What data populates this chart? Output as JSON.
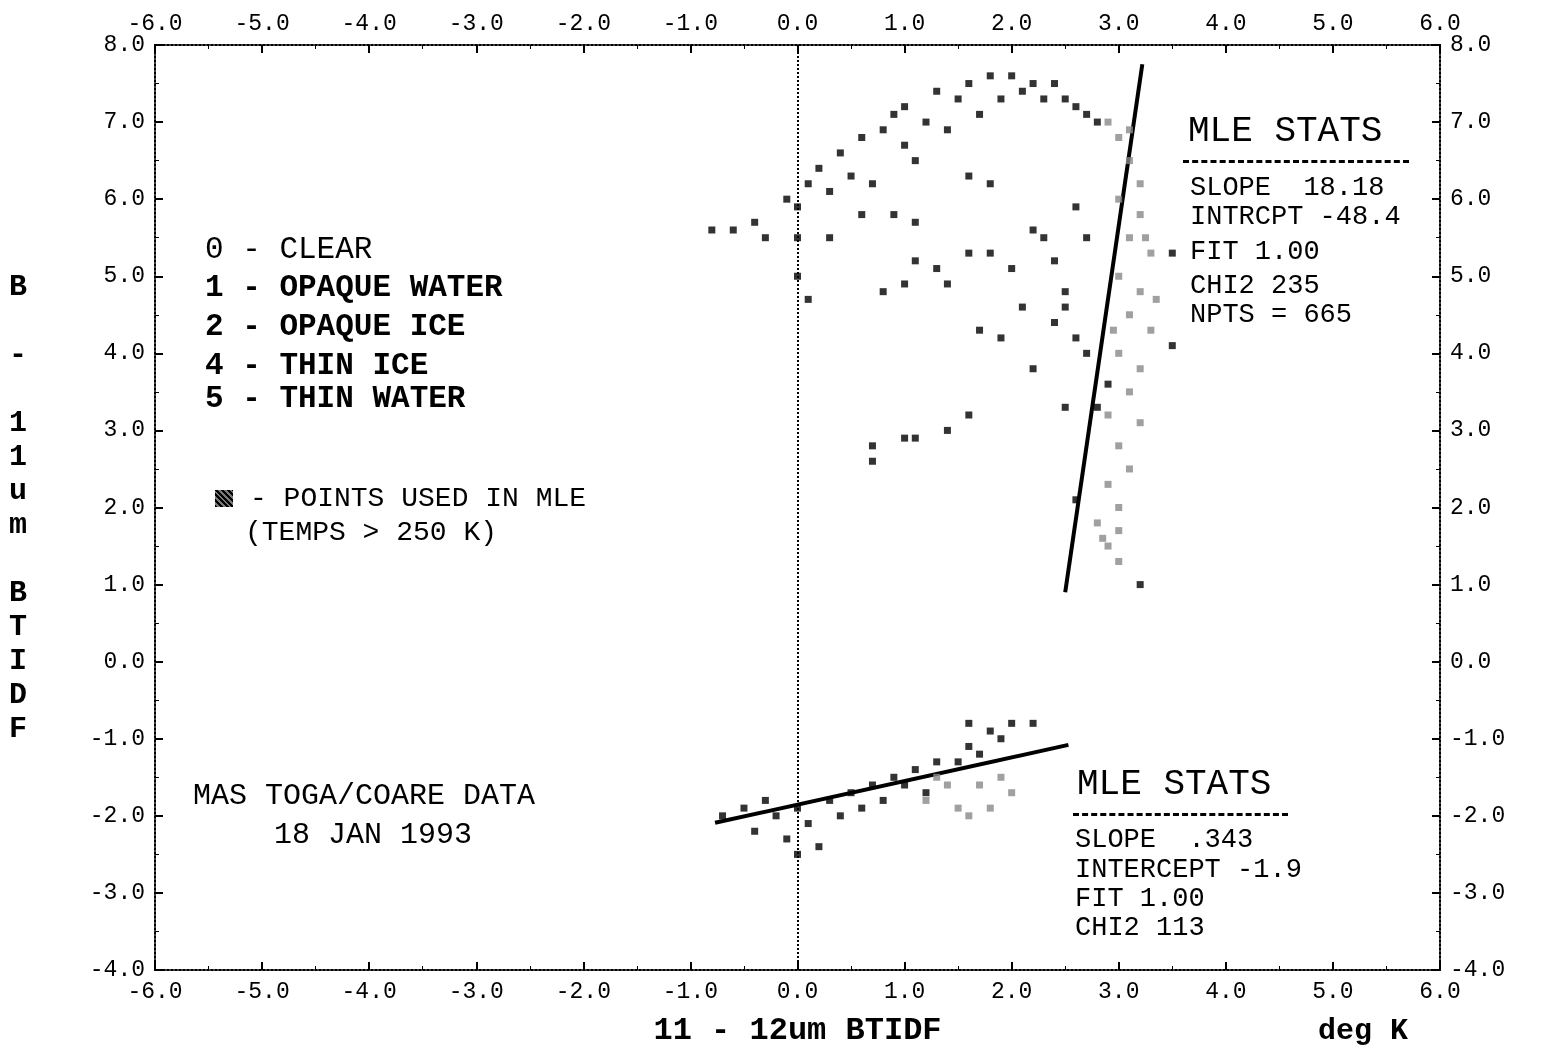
{
  "chart_data": {
    "type": "scatter",
    "xlabel": "11 - 12um BTIDF",
    "ylabel": "B - 11um BTIDF",
    "xlim": [
      -6,
      6
    ],
    "ylim": [
      -4,
      8
    ],
    "x2lim": [
      -6,
      6
    ],
    "y2lim": [
      -4,
      8
    ],
    "xticks": [
      {
        "value": -6,
        "label": "-6.0"
      },
      {
        "value": -5,
        "label": "-5.0"
      },
      {
        "value": -4,
        "label": "-4.0"
      },
      {
        "value": -3,
        "label": "-3.0"
      },
      {
        "value": -2,
        "label": "-2.0"
      },
      {
        "value": -1,
        "label": "-1.0"
      },
      {
        "value": 0,
        "label": "0.0"
      },
      {
        "value": 1,
        "label": "1.0"
      },
      {
        "value": 2,
        "label": "2.0"
      },
      {
        "value": 3,
        "label": "3.0"
      },
      {
        "value": 4,
        "label": "4.0"
      },
      {
        "value": 5,
        "label": "5.0"
      },
      {
        "value": 6,
        "label": "6.0"
      }
    ],
    "x2ticks": [
      {
        "value": -6,
        "label": "-6.0"
      },
      {
        "value": -5,
        "label": "-5.0"
      },
      {
        "value": -4,
        "label": "-4.0"
      },
      {
        "value": -3,
        "label": "-3.0"
      },
      {
        "value": -2,
        "label": "-2.0"
      },
      {
        "value": -1,
        "label": "-1.0"
      },
      {
        "value": 0,
        "label": "0.0"
      },
      {
        "value": 1,
        "label": "1.0"
      },
      {
        "value": 2,
        "label": "2.0"
      },
      {
        "value": 3,
        "label": "3.0"
      },
      {
        "value": 4,
        "label": "4.0"
      },
      {
        "value": 5,
        "label": "5.0"
      },
      {
        "value": 6,
        "label": "6.0"
      }
    ],
    "yticks": [
      {
        "value": -4,
        "label": "-4.0"
      },
      {
        "value": -3,
        "label": "-3.0"
      },
      {
        "value": -2,
        "label": "-2.0"
      },
      {
        "value": -1,
        "label": "-1.0"
      },
      {
        "value": 0,
        "label": "0.0"
      },
      {
        "value": 1,
        "label": "1.0"
      },
      {
        "value": 2,
        "label": "2.0"
      },
      {
        "value": 3,
        "label": "3.0"
      },
      {
        "value": 4,
        "label": "4.0"
      },
      {
        "value": 5,
        "label": "5.0"
      },
      {
        "value": 6,
        "label": "6.0"
      },
      {
        "value": 7,
        "label": "7.0"
      },
      {
        "value": 8,
        "label": "8.0"
      }
    ],
    "y2ticks": [
      {
        "value": -4,
        "label": "-4.0"
      },
      {
        "value": -3,
        "label": "-3.0"
      },
      {
        "value": -2,
        "label": "-2.0"
      },
      {
        "value": -1,
        "label": "-1.0"
      },
      {
        "value": 0,
        "label": "0.0"
      },
      {
        "value": 1,
        "label": "1.0"
      },
      {
        "value": 2,
        "label": "2.0"
      },
      {
        "value": 3,
        "label": "3.0"
      },
      {
        "value": 4,
        "label": "4.0"
      },
      {
        "value": 5,
        "label": "5.0"
      },
      {
        "value": 6,
        "label": "6.0"
      },
      {
        "value": 7,
        "label": "7.0"
      },
      {
        "value": 8,
        "label": "8.0"
      }
    ],
    "marker": "square",
    "series": [
      {
        "color": "#000000",
        "x": [
          -0.8,
          -0.6,
          -0.4,
          -0.3,
          -0.1,
          0,
          0,
          0,
          0.1,
          0.2,
          0.3,
          0.4,
          0.5,
          0.6,
          0.7,
          0.8,
          0.9,
          1.0,
          1.0,
          1.1,
          1.2,
          1.3,
          1.4,
          1.5,
          1.6,
          1.7,
          1.8,
          1.9,
          2.0,
          2.1,
          2.2,
          2.3,
          2.4,
          2.5,
          2.6,
          2.7,
          2.8,
          0.6,
          0.9,
          0.3,
          1.1,
          0.1
        ],
        "values": [
          5.6,
          5.6,
          5.7,
          5.5,
          6.0,
          5.9,
          5.5,
          5.0,
          6.2,
          6.4,
          6.1,
          6.6,
          6.3,
          6.8,
          6.2,
          6.9,
          7.1,
          6.7,
          7.2,
          6.5,
          7.0,
          7.4,
          6.9,
          7.3,
          7.5,
          7.1,
          7.6,
          7.3,
          7.6,
          7.4,
          7.5,
          7.3,
          7.5,
          7.3,
          7.2,
          7.1,
          7.0,
          5.8,
          5.8,
          5.5,
          5.7,
          4.7
        ]
      },
      {
        "color": "#000000",
        "x": [
          0.8,
          1.0,
          1.1,
          1.3,
          1.4,
          1.6,
          1.8,
          2.0,
          2.2,
          2.3,
          2.4,
          2.5,
          2.1,
          2.4,
          2.6,
          2.7,
          1.7,
          1.9,
          2.2,
          2.5,
          2.8,
          2.9,
          1.6,
          1.4,
          1.1,
          1.0,
          0.7,
          0.7,
          1.6,
          1.8,
          2.6,
          2.7,
          2.5,
          2.6,
          3.5,
          3.5,
          3.2
        ],
        "values": [
          4.8,
          4.9,
          5.2,
          5.1,
          4.9,
          5.3,
          5.3,
          5.1,
          5.6,
          5.5,
          5.2,
          4.8,
          4.6,
          4.4,
          4.2,
          4.0,
          4.3,
          4.2,
          3.8,
          3.3,
          3.3,
          3.6,
          3.2,
          3.0,
          2.9,
          2.9,
          2.8,
          2.6,
          6.3,
          6.2,
          5.9,
          5.5,
          4.6,
          2.1,
          5.3,
          4.1,
          1.0
        ]
      },
      {
        "color": "#888888",
        "x": [
          2.9,
          3.0,
          3.1,
          3.2,
          3.0,
          3.2,
          3.1,
          3.3,
          3.0,
          3.2,
          3.1,
          3.3,
          3.0,
          3.2,
          3.1,
          2.9,
          3.2,
          3.0,
          3.1,
          2.9,
          3.0,
          2.8,
          3.0,
          2.9,
          3.0,
          2.85,
          3.1,
          3.25,
          2.95,
          3.35
        ],
        "values": [
          7.0,
          6.8,
          6.5,
          6.2,
          6.0,
          5.8,
          5.5,
          5.3,
          5.0,
          4.8,
          4.5,
          4.3,
          4.0,
          3.8,
          3.5,
          3.2,
          3.1,
          2.8,
          2.5,
          2.3,
          2.0,
          1.8,
          1.7,
          1.5,
          1.3,
          1.6,
          6.9,
          5.5,
          4.3,
          4.7
        ]
      },
      {
        "color": "#000000",
        "x": [
          -0.7,
          -0.5,
          -0.4,
          -0.2,
          -0.1,
          0,
          0.1,
          0.2,
          0.3,
          0.4,
          0.5,
          0.6,
          0.7,
          0.8,
          0.9,
          1.0,
          1.1,
          1.2,
          1.3,
          1.5,
          1.6,
          1.7,
          1.8,
          1.9,
          2.0,
          1.6,
          2.2,
          0.0,
          -0.3
        ],
        "values": [
          -2.0,
          -1.9,
          -2.2,
          -2.0,
          -2.3,
          -1.9,
          -2.1,
          -2.4,
          -1.8,
          -2.0,
          -1.7,
          -1.9,
          -1.6,
          -1.8,
          -1.5,
          -1.6,
          -1.4,
          -1.7,
          -1.3,
          -1.3,
          -1.1,
          -1.2,
          -0.9,
          -1.0,
          -0.8,
          -0.8,
          -0.8,
          -2.5,
          -1.8
        ]
      },
      {
        "color": "#888888",
        "x": [
          1.2,
          1.4,
          1.5,
          1.7,
          1.8,
          2.0,
          1.6,
          1.9,
          1.3
        ],
        "values": [
          -1.8,
          -1.6,
          -1.9,
          -1.6,
          -1.9,
          -1.7,
          -2.0,
          -1.5,
          -1.5
        ]
      },
      {
        "type": "line",
        "marker": "none",
        "color": "#000000",
        "x": [
          2.5,
          3.22
        ],
        "values": [
          0.9,
          7.75
        ]
      },
      {
        "type": "line",
        "marker": "none",
        "color": "#000000",
        "x": [
          -0.77,
          2.53
        ],
        "values": [
          -2.09,
          -1.08
        ]
      }
    ],
    "ref_lines": [
      {
        "axis": "x",
        "value": 0,
        "line_style": "dotted",
        "color": "#000000"
      }
    ],
    "annotations": [
      "0 - CLEAR",
      "1 - OPAQUE WATER",
      "2 - OPAQUE ICE",
      "4 - THIN ICE",
      "5 - THIN WATER",
      "- POINTS USED IN MLE",
      "(TEMPS > 250 K)",
      "MAS TOGA/COARE DATA",
      "18 JAN 1993",
      "MLE STATS",
      "SLOPE  18.18",
      "INTRCPT -48.4",
      "FIT 1.00",
      "CHI2 235",
      "NPTS = 665",
      "MLE STATS",
      "SLOPE  .343",
      "INTERCEPT -1.9",
      "FIT 1.00",
      "CHI2 113",
      "deg K"
    ]
  }
}
